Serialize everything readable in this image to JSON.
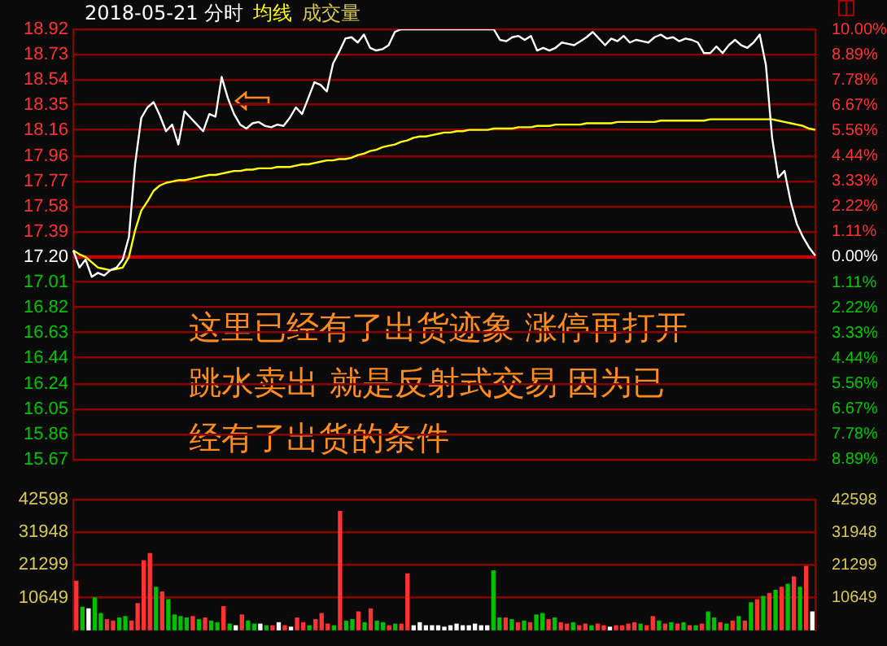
{
  "chart_data": [
    {
      "type": "line",
      "title": "2018-05-21 分时",
      "categories": [
        null,
        null,
        null,
        null,
        null,
        null,
        null,
        null,
        null,
        null,
        null,
        null,
        null,
        null,
        null,
        null,
        null,
        null,
        null,
        null,
        null,
        null,
        null,
        null,
        null,
        null,
        null,
        null,
        null,
        null,
        null,
        null,
        null,
        null,
        null,
        null,
        null,
        null,
        null,
        null,
        null,
        null,
        null,
        null,
        null,
        null,
        null,
        null,
        null,
        null,
        null,
        null,
        null,
        null,
        null,
        null,
        null,
        null,
        null,
        null,
        null,
        null,
        null,
        null,
        null,
        null,
        null,
        null,
        null,
        null,
        null,
        null,
        null,
        null,
        null,
        null,
        null,
        null,
        null,
        null,
        null,
        null,
        null,
        null,
        null,
        null,
        null,
        null,
        null,
        null,
        null,
        null,
        null,
        null,
        null,
        null,
        null,
        null,
        null,
        null,
        null,
        null,
        null,
        null,
        null,
        null,
        null,
        null,
        null,
        null,
        null,
        null,
        null,
        null,
        null,
        null,
        null,
        null,
        null,
        null,
        null
      ],
      "series": [
        {
          "color": "#ffffff",
          "values": [
            17.25,
            17.12,
            17.18,
            17.05,
            17.08,
            17.06,
            17.1,
            17.12,
            17.18,
            17.35,
            17.9,
            18.25,
            18.33,
            18.37,
            18.27,
            18.15,
            18.2,
            18.05,
            18.3,
            18.25,
            18.2,
            18.15,
            18.28,
            18.26,
            18.56,
            18.4,
            18.28,
            18.2,
            18.17,
            18.21,
            18.22,
            18.19,
            18.18,
            18.2,
            18.19,
            18.25,
            18.33,
            18.28,
            18.4,
            18.52,
            18.5,
            18.45,
            18.66,
            18.75,
            18.85,
            18.86,
            18.82,
            18.88,
            18.78,
            18.76,
            18.77,
            18.8,
            18.9,
            18.92,
            18.92,
            18.92,
            18.92,
            18.92,
            18.92,
            18.92,
            18.92,
            18.92,
            18.92,
            18.92,
            18.92,
            18.92,
            18.92,
            18.92,
            18.92,
            18.84,
            18.83,
            18.86,
            18.87,
            18.84,
            18.87,
            18.76,
            18.78,
            18.76,
            18.78,
            18.82,
            18.81,
            18.8,
            18.83,
            18.86,
            18.9,
            18.85,
            18.8,
            18.85,
            18.83,
            18.87,
            18.82,
            18.84,
            18.83,
            18.82,
            18.86,
            18.88,
            18.85,
            18.86,
            18.83,
            18.85,
            18.84,
            18.82,
            18.74,
            18.74,
            18.79,
            18.74,
            18.8,
            18.84,
            18.8,
            18.78,
            18.82,
            18.88,
            18.65,
            18.1,
            17.8,
            17.85,
            17.62,
            17.45,
            17.35,
            17.27,
            17.21
          ]
        },
        {
          "name": "均线",
          "color": "#ffff00",
          "values": [
            17.25,
            17.22,
            17.2,
            17.16,
            17.12,
            17.11,
            17.1,
            17.11,
            17.12,
            17.2,
            17.4,
            17.55,
            17.62,
            17.7,
            17.74,
            17.76,
            17.77,
            17.78,
            17.78,
            17.79,
            17.8,
            17.81,
            17.82,
            17.82,
            17.83,
            17.84,
            17.85,
            17.85,
            17.86,
            17.86,
            17.87,
            17.87,
            17.87,
            17.88,
            17.88,
            17.88,
            17.89,
            17.9,
            17.9,
            17.91,
            17.92,
            17.93,
            17.93,
            17.94,
            17.94,
            17.95,
            17.97,
            17.98,
            18.0,
            18.01,
            18.03,
            18.04,
            18.05,
            18.07,
            18.08,
            18.1,
            18.11,
            18.11,
            18.12,
            18.13,
            18.14,
            18.14,
            18.15,
            18.15,
            18.16,
            18.16,
            18.16,
            18.16,
            18.17,
            18.17,
            18.17,
            18.17,
            18.18,
            18.18,
            18.18,
            18.19,
            18.19,
            18.19,
            18.2,
            18.2,
            18.2,
            18.2,
            18.2,
            18.21,
            18.21,
            18.21,
            18.21,
            18.21,
            18.22,
            18.22,
            18.22,
            18.22,
            18.22,
            18.22,
            18.22,
            18.23,
            18.23,
            18.23,
            18.23,
            18.23,
            18.23,
            18.23,
            18.23,
            18.24,
            18.24,
            18.24,
            18.24,
            18.24,
            18.24,
            18.24,
            18.24,
            18.24,
            18.24,
            18.24,
            18.23,
            18.22,
            18.21,
            18.2,
            18.19,
            18.17,
            18.16
          ]
        }
      ],
      "ylim": [
        15.67,
        18.92
      ],
      "yticks": [
        18.92,
        18.73,
        18.54,
        18.35,
        18.16,
        17.96,
        17.77,
        17.58,
        17.39,
        {
          "value": 17.2,
          "label": "17.20"
        },
        17.01,
        16.82,
        16.63,
        16.44,
        16.24,
        16.05,
        15.86,
        15.67
      ],
      "y2lim": [
        -8.89,
        10.0
      ],
      "y2ticks": [
        {
          "value": 10.0,
          "label": "10.00%"
        },
        {
          "value": 8.89,
          "label": "8.89%"
        },
        {
          "value": 7.78,
          "label": "7.78%"
        },
        {
          "value": 6.67,
          "label": "6.67%"
        },
        {
          "value": 5.56,
          "label": "5.56%"
        },
        {
          "value": 4.44,
          "label": "4.44%"
        },
        {
          "value": 3.33,
          "label": "3.33%"
        },
        {
          "value": 2.22,
          "label": "2.22%"
        },
        {
          "value": 1.11,
          "label": "1.11%"
        },
        {
          "value": 0,
          "label": "0.00%"
        },
        {
          "value": -1.11,
          "label": "1.11%"
        },
        {
          "value": -2.22,
          "label": "2.22%"
        },
        {
          "value": -3.33,
          "label": "3.33%"
        },
        {
          "value": -4.44,
          "label": "4.44%"
        },
        {
          "value": -5.56,
          "label": "5.56%"
        },
        {
          "value": -6.67,
          "label": "6.67%"
        },
        {
          "value": -7.78,
          "label": "7.78%"
        },
        {
          "value": -8.89,
          "label": "8.89%"
        }
      ],
      "ref_lines": [
        {
          "axis": "y",
          "value": 17.2,
          "color": "#c80000"
        }
      ],
      "tick_labels": "y",
      "grid": "y",
      "marker": "none",
      "line_style": "solid",
      "annotations": [
        "成交量",
        "这里已经有了出货迹象 涨停再打开跳水卖出 就是反射式交易 因为已经有了出货的条件"
      ]
    },
    {
      "type": "bar",
      "categories": [
        null,
        null,
        null,
        null,
        null,
        null,
        null,
        null,
        null,
        null,
        null,
        null,
        null,
        null,
        null,
        null,
        null,
        null,
        null,
        null,
        null,
        null,
        null,
        null,
        null,
        null,
        null,
        null,
        null,
        null,
        null,
        null,
        null,
        null,
        null,
        null,
        null,
        null,
        null,
        null,
        null,
        null,
        null,
        null,
        null,
        null,
        null,
        null,
        null,
        null,
        null,
        null,
        null,
        null,
        null,
        null,
        null,
        null,
        null,
        null,
        null,
        null,
        null,
        null,
        null,
        null,
        null,
        null,
        null,
        null,
        null,
        null,
        null,
        null,
        null,
        null,
        null,
        null,
        null,
        null,
        null,
        null,
        null,
        null,
        null,
        null,
        null,
        null,
        null,
        null,
        null,
        null,
        null,
        null,
        null,
        null,
        null,
        null,
        null,
        null,
        null,
        null,
        null,
        null,
        null,
        null,
        null,
        null,
        null,
        null,
        null,
        null,
        null,
        null,
        null,
        null,
        null,
        null,
        null,
        null,
        null
      ],
      "values": [
        16000,
        7500,
        7000,
        10600,
        5500,
        3500,
        3000,
        4000,
        4500,
        3000,
        8700,
        22700,
        25000,
        14000,
        12500,
        10000,
        5000,
        4500,
        4000,
        4500,
        3500,
        4000,
        3000,
        2500,
        7700,
        2000,
        1500,
        5000,
        3000,
        2000,
        2000,
        1500,
        1500,
        2500,
        1500,
        1000,
        4000,
        2500,
        1500,
        3500,
        5500,
        2000,
        1500,
        38700,
        3000,
        3500,
        6000,
        2500,
        7000,
        3000,
        2500,
        1500,
        2000,
        2000,
        18400,
        1500,
        2500,
        1500,
        1500,
        1500,
        1000,
        1500,
        2000,
        1500,
        1500,
        2000,
        1500,
        1500,
        19400,
        4000,
        4000,
        3500,
        2500,
        3000,
        2500,
        5000,
        5500,
        3500,
        4000,
        2500,
        2000,
        2500,
        1500,
        2000,
        1500,
        2000,
        1500,
        1000,
        1500,
        1500,
        2000,
        2500,
        2000,
        1500,
        4500,
        3000,
        2000,
        2500,
        2000,
        2500,
        1500,
        1500,
        2000,
        6000,
        4000,
        2500,
        2000,
        3000,
        4500,
        3000,
        9000,
        10000,
        11000,
        12000,
        13000,
        14000,
        15000,
        17400,
        14000,
        20800,
        6000
      ],
      "colors": [
        "#ff3232",
        "#00c000",
        "#ffffff",
        "#00c000",
        "#00c000",
        "#ff3232",
        "#ff3232",
        "#00c000",
        "#00c000",
        "#ff3232",
        "#ff3232",
        "#ff3232",
        "#ff3232",
        "#00c000",
        "#ff3232",
        "#00c000",
        "#00c000",
        "#00c000",
        "#00c000",
        "#ff3232",
        "#00c000",
        "#ff3232",
        "#00c000",
        "#00c000",
        "#ff3232",
        "#00c000",
        "#ffffff",
        "#ff3232",
        "#00c000",
        "#00c000",
        "#ffffff",
        "#00c000",
        "#ff3232",
        "#ffffff",
        "#ff3232",
        "#ffffff",
        "#ff3232",
        "#ff3232",
        "#00c000",
        "#ff3232",
        "#ff3232",
        "#ff3232",
        "#00c000",
        "#ff3232",
        "#00c000",
        "#00c000",
        "#ff3232",
        "#00c000",
        "#ff3232",
        "#00c000",
        "#00c000",
        "#ff3232",
        "#00c000",
        "#ff3232",
        "#ff3232",
        "#ffffff",
        "#ffffff",
        "#ffffff",
        "#ffffff",
        "#ffffff",
        "#ffffff",
        "#ffffff",
        "#ffffff",
        "#ffffff",
        "#ffffff",
        "#ffffff",
        "#ffffff",
        "#ffffff",
        "#00c000",
        "#00c000",
        "#ff3232",
        "#00c000",
        "#ff3232",
        "#00c000",
        "#ff3232",
        "#00c000",
        "#00c000",
        "#ff3232",
        "#00c000",
        "#ff3232",
        "#ff3232",
        "#00c000",
        "#ff3232",
        "#ff3232",
        "#00c000",
        "#ff3232",
        "#ff3232",
        "#ffffff",
        "#ff3232",
        "#ff3232",
        "#ff3232",
        "#ff3232",
        "#00c000",
        "#ff3232",
        "#ff3232",
        "#00c000",
        "#ff3232",
        "#00c000",
        "#ff3232",
        "#00c000",
        "#ff3232",
        "#00c000",
        "#ff3232",
        "#00c000",
        "#00c000",
        "#ff3232",
        "#00c000",
        "#ff3232",
        "#00c000",
        "#ff3232",
        "#00c000",
        "#ff3232",
        "#00c000",
        "#ff3232",
        "#00c000",
        "#ff3232",
        "#00c000",
        "#ff3232",
        "#00c000",
        "#ff3232",
        "#ffffff"
      ],
      "ylim": [
        0,
        42598
      ],
      "yticks": [
        10649,
        21299,
        31948,
        42598
      ],
      "y2lim": [
        0,
        42598
      ],
      "y2ticks": [
        10649,
        21299,
        31948,
        42598
      ],
      "tick_labels": "y",
      "grid": "y"
    }
  ]
}
